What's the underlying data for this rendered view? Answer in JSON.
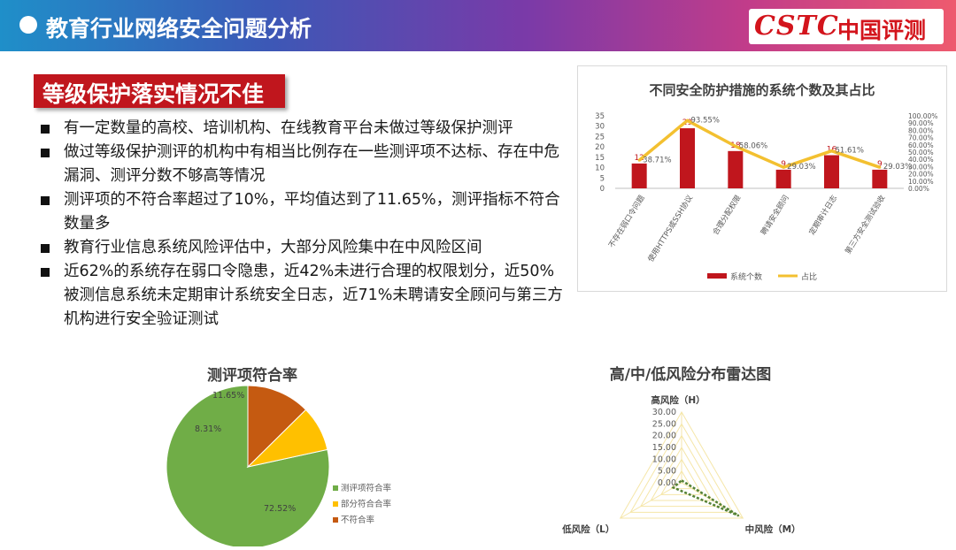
{
  "header": {
    "title": "教育行业网络安全问题分析",
    "logo_latin": "CSTC",
    "logo_cn": "中国评测"
  },
  "section": {
    "title": "等级保护落实情况不佳"
  },
  "bullets": [
    "有一定数量的高校、培训机构、在线教育平台未做过等级保护测评",
    "做过等级保护测评的机构中有相当比例存在一些测评项不达标、存在中危漏洞、测评分数不够高等情况",
    "测评项的不符合率超过了10%，平均值达到了11.65%，测评指标不符合数量多",
    "教育行业信息系统风险评估中，大部分风险集中在中风险区间",
    "近62%的系统存在弱口令隐患，近42%未进行合理的权限划分，近50%被测信息系统未定期审计系统安全日志，近71%未聘请安全顾问与第三方机构进行安全验证测试"
  ],
  "colors": {
    "bar": "#c0161d",
    "line": "#f3c030",
    "green": "#70ad47",
    "yellow": "#ffc000",
    "orange": "#c55a11",
    "radar": "#f5e6a8",
    "radar_series": "#548235"
  },
  "chart_data": [
    {
      "type": "bar",
      "title": "不同安全防护措施的系统个数及其占比",
      "categories": [
        "不存在弱口令问题",
        "使用HTTPS或SSH协议",
        "合理分配权限",
        "聘请安全顾问",
        "定期审计日志",
        "第三方安全测试验收"
      ],
      "series": [
        {
          "name": "系统个数",
          "values": [
            12,
            29,
            18,
            9,
            16,
            9
          ],
          "data_labels": [
            "12",
            "29",
            "18",
            "9",
            "16",
            "9"
          ]
        },
        {
          "name": "占比",
          "values": [
            38.71,
            93.55,
            58.06,
            29.03,
            51.61,
            29.03
          ],
          "data_labels": [
            "38.71%",
            "93.55%",
            "58.06%",
            "29.03%",
            "51.61%",
            "29.03%"
          ],
          "axis": "secondary"
        }
      ],
      "ylim": [
        0,
        35
      ],
      "yticks": [
        "35",
        "30",
        "25",
        "20",
        "15",
        "10",
        "5",
        "0"
      ],
      "y2lim": [
        0,
        100
      ],
      "y2ticks": [
        "100.00%",
        "90.00%",
        "80.00%",
        "70.00%",
        "60.00%",
        "50.00%",
        "40.00%",
        "30.00%",
        "20.00%",
        "10.00%",
        "0.00%"
      ],
      "legend_position": "bottom",
      "grid": false
    },
    {
      "type": "pie",
      "title": "测评项符合率",
      "labels": [
        "测评项符合率",
        "部分符合合率",
        "不符合率"
      ],
      "values": [
        72.52,
        8.31,
        11.65
      ],
      "data_labels": [
        "72.52%",
        "8.31%",
        "11.65%"
      ],
      "legend_position": "right"
    },
    {
      "type": "radar",
      "title": "高/中/低风险分布雷达图",
      "axes": [
        "高风险（H）",
        "中风险（M）",
        "低风险（L）"
      ],
      "ticks": [
        "30.00",
        "25.00",
        "20.00",
        "15.00",
        "10.00",
        "5.00",
        "0.00"
      ],
      "rlim": [
        0,
        30
      ],
      "values": [
        1.0,
        28.0,
        4.0
      ]
    }
  ]
}
